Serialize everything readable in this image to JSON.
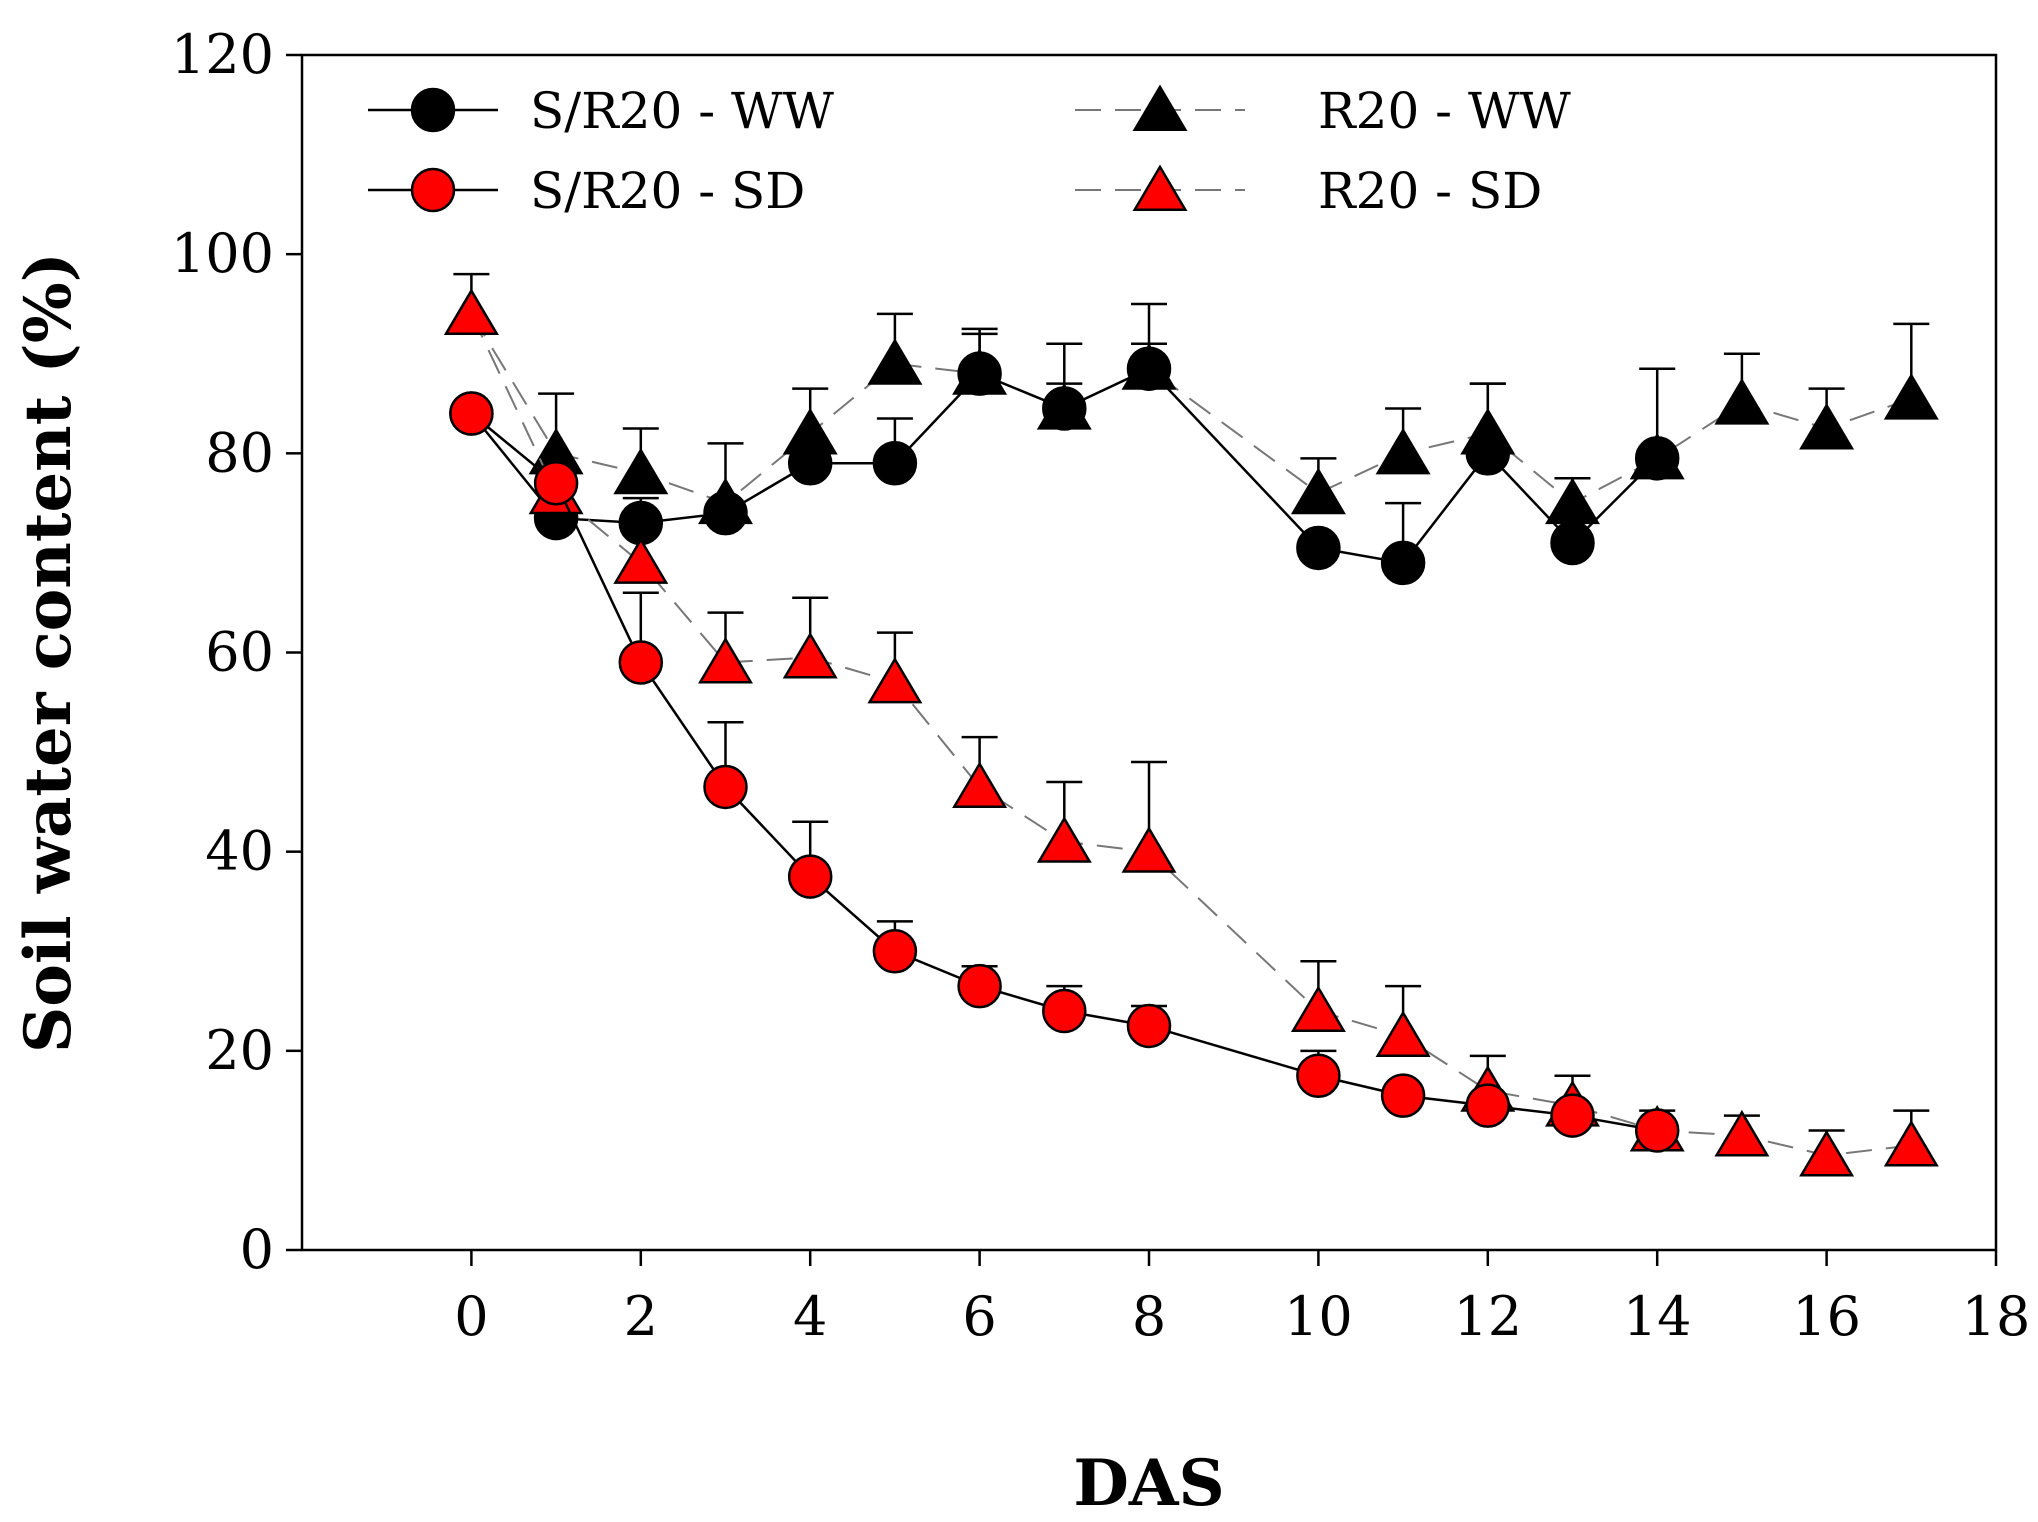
{
  "chart_data": {
    "type": "line",
    "title": "",
    "xlabel": "DAS",
    "ylabel": "Soil water content (%)",
    "xlim": [
      -2,
      18
    ],
    "ylim": [
      0,
      120
    ],
    "xticks": [
      0,
      2,
      4,
      6,
      8,
      10,
      12,
      14,
      16,
      18
    ],
    "yticks": [
      0,
      20,
      40,
      60,
      80,
      100,
      120
    ],
    "xtick_labels": [
      "0",
      "2",
      "4",
      "6",
      "8",
      "10",
      "12",
      "14",
      "16",
      "18"
    ],
    "ytick_labels": [
      "0",
      "20",
      "40",
      "60",
      "80",
      "100",
      "120"
    ],
    "legend_position": "top",
    "series": [
      {
        "name": "S/R20 - WW",
        "marker": "circle",
        "color": "#000000",
        "line_style": "solid",
        "x": [
          0,
          1,
          2,
          3,
          4,
          5,
          6,
          7,
          8,
          10,
          11,
          12,
          13,
          14
        ],
        "y": [
          84,
          73.5,
          73,
          74,
          79,
          79,
          88,
          84.5,
          88.5,
          70.5,
          69,
          80,
          71,
          79.5
        ],
        "err": [
          0,
          0,
          2.5,
          0,
          0,
          4.5,
          4.5,
          2.5,
          2.5,
          0,
          6,
          7,
          0,
          0
        ]
      },
      {
        "name": "R20 - WW",
        "marker": "triangle",
        "color": "#000000",
        "line_style": "dashed",
        "x": [
          0,
          1,
          2,
          3,
          4,
          5,
          6,
          7,
          8,
          10,
          11,
          12,
          13,
          14,
          15,
          16,
          17
        ],
        "y": [
          94,
          80,
          78,
          75,
          82,
          89,
          88,
          84.5,
          88.5,
          76,
          80,
          82,
          75,
          79.5,
          85,
          82.5,
          85.5
        ],
        "err": [
          4,
          6,
          4.5,
          6,
          4.5,
          5,
          4,
          6.5,
          6.5,
          3.5,
          4.5,
          5,
          2.5,
          9,
          5,
          4,
          7.5
        ]
      },
      {
        "name": "S/R20 - SD",
        "marker": "circle",
        "color": "#ff0000",
        "line_style": "solid",
        "x": [
          0,
          1,
          2,
          3,
          4,
          5,
          6,
          7,
          8,
          10,
          11,
          12,
          13,
          14
        ],
        "y": [
          84,
          77,
          59,
          46.5,
          37.5,
          30,
          26.5,
          24,
          22.5,
          17.5,
          15.5,
          14.5,
          13.5,
          12
        ],
        "err": [
          0,
          0,
          7,
          6.5,
          5.5,
          3,
          2,
          2.5,
          2,
          2.5,
          0,
          0,
          0,
          0
        ]
      },
      {
        "name": "R20 - SD",
        "marker": "triangle",
        "color": "#ff0000",
        "line_style": "dashed",
        "x": [
          0,
          1,
          2,
          3,
          4,
          5,
          6,
          7,
          8,
          10,
          11,
          12,
          13,
          14,
          15,
          16,
          17
        ],
        "y": [
          94,
          76,
          69,
          59,
          59.5,
          57,
          46.5,
          41,
          40,
          24,
          21.5,
          16,
          14.5,
          12,
          11.5,
          9.5,
          10.5
        ],
        "err": [
          0,
          0,
          0,
          5,
          6,
          5,
          5,
          6,
          9,
          5,
          5,
          3.5,
          3,
          2,
          2,
          2.5,
          3.5
        ]
      }
    ]
  }
}
